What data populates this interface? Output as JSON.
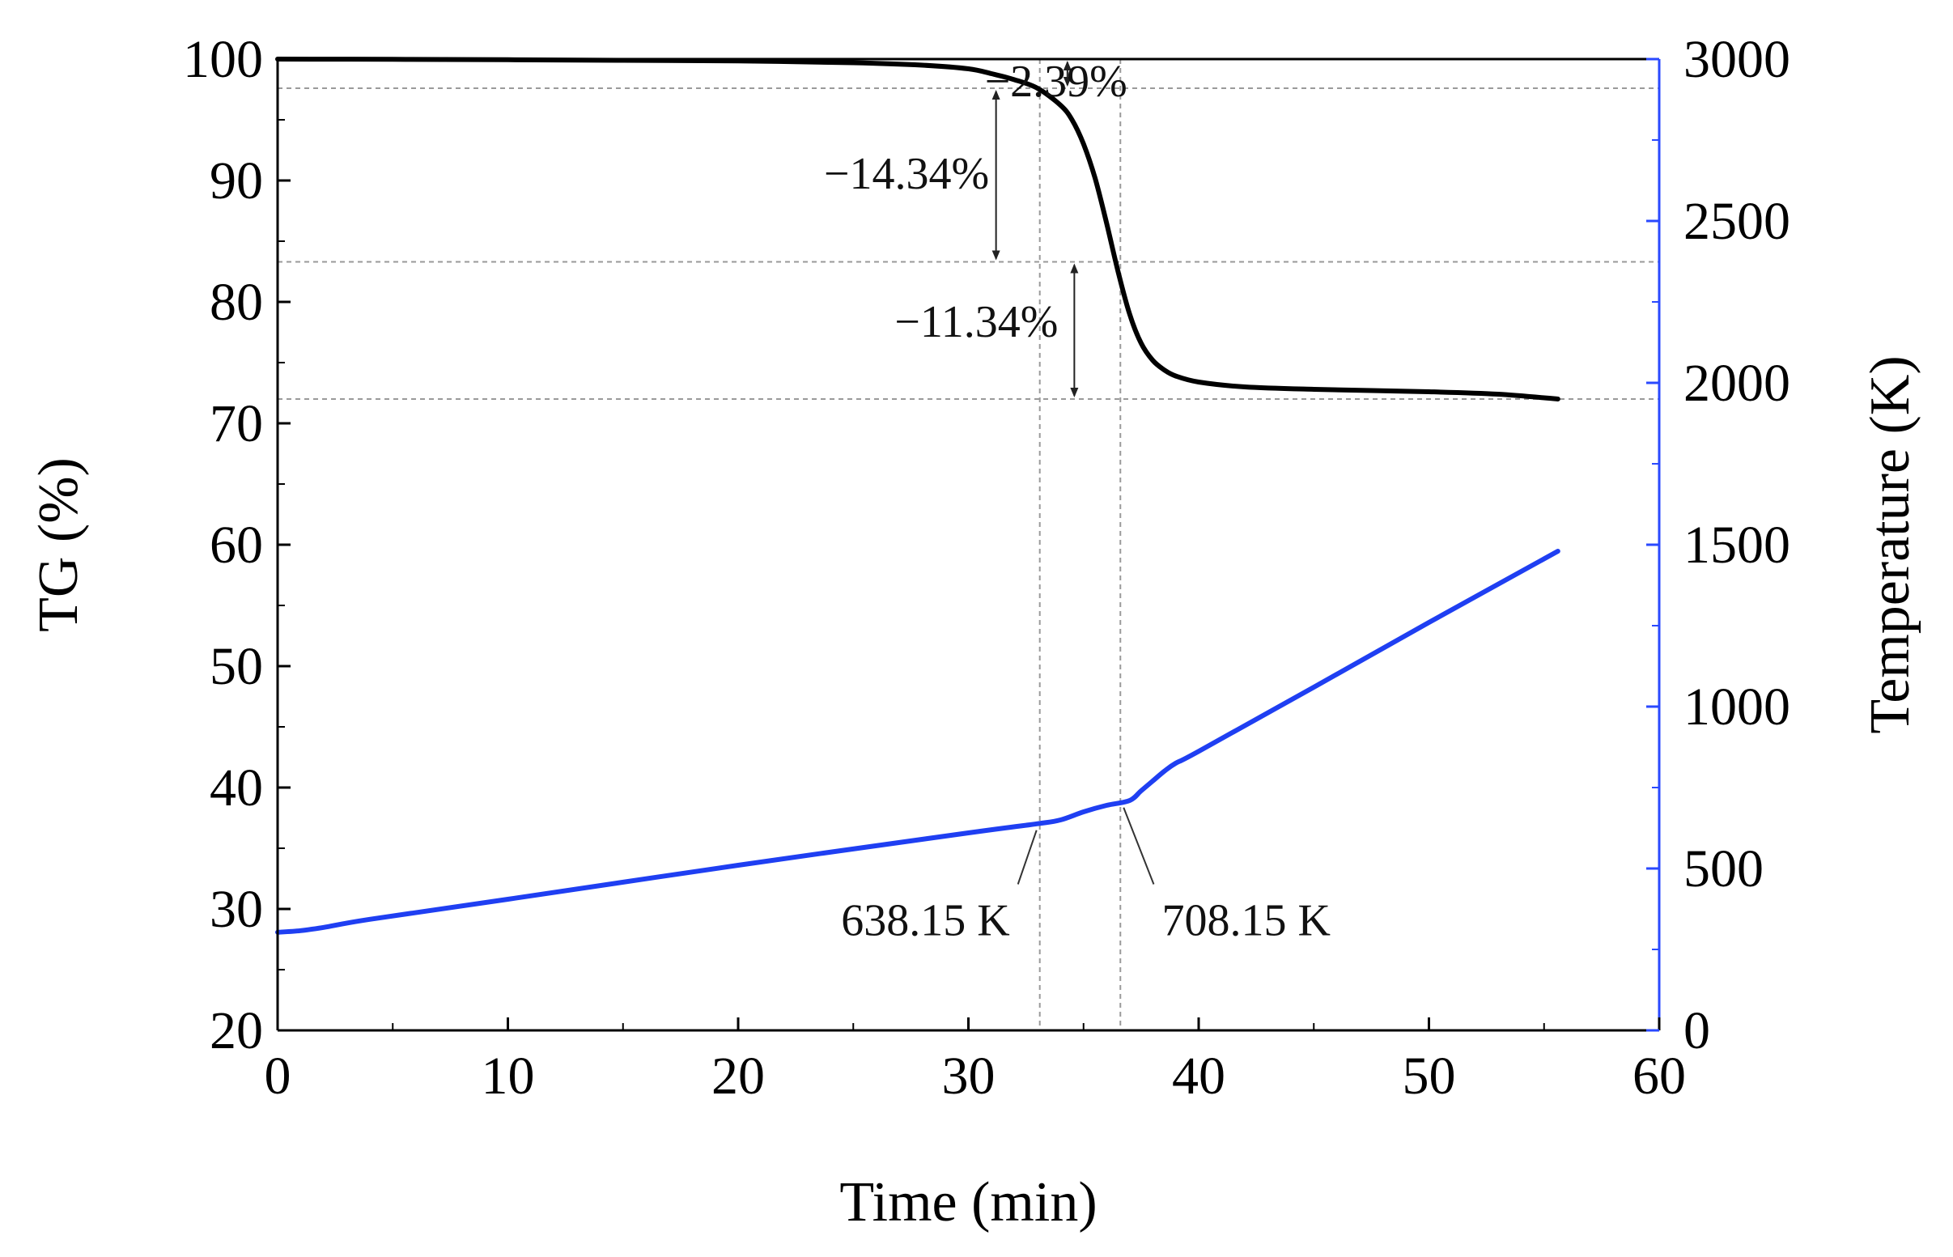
{
  "chart_data": {
    "type": "line",
    "xlabel": "Time (min)",
    "ylabel_left": "TG (%)",
    "ylabel_right": "Temperature (K)",
    "xlim": [
      0,
      60
    ],
    "ylim_left": [
      20,
      100
    ],
    "ylim_right": [
      0,
      3000
    ],
    "x_ticks": [
      "0",
      "10",
      "20",
      "30",
      "40",
      "50",
      "60"
    ],
    "y_left_ticks": [
      "20",
      "30",
      "40",
      "50",
      "60",
      "70",
      "80",
      "90",
      "100"
    ],
    "y_right_ticks": [
      "0",
      "500",
      "1000",
      "1500",
      "2000",
      "2500",
      "3000"
    ],
    "colors": {
      "tg": "#000000",
      "temperature": "#1f3ff2",
      "right_axis": "#2a49ff",
      "guide": "#9a9a9a"
    },
    "series": [
      {
        "name": "TG",
        "axis": "left",
        "x": [
          0,
          5,
          10,
          15,
          20,
          25,
          28,
          30,
          31,
          32,
          33,
          34,
          34.5,
          35,
          35.5,
          36,
          36.5,
          37,
          37.5,
          38,
          38.5,
          39,
          40,
          42,
          45,
          50,
          53,
          55.6
        ],
        "y": [
          100,
          99.98,
          99.95,
          99.9,
          99.85,
          99.7,
          99.5,
          99.2,
          98.8,
          98.3,
          97.6,
          96.2,
          95.0,
          93.0,
          90.2,
          86.5,
          82.5,
          79.0,
          76.6,
          75.2,
          74.4,
          73.9,
          73.4,
          73.0,
          72.8,
          72.6,
          72.4,
          72.0
        ]
      },
      {
        "name": "Temperature",
        "axis": "right",
        "x": [
          0,
          1,
          2,
          4,
          10,
          20,
          30,
          33,
          34,
          35,
          36,
          37,
          37.5,
          38,
          38.5,
          39,
          40,
          45,
          50,
          55.6
        ],
        "y": [
          303,
          308,
          318,
          343,
          405,
          510,
          610,
          638.15,
          650,
          675,
          695,
          710,
          740,
          770,
          800,
          825,
          862,
          1060,
          1260,
          1480
        ]
      }
    ],
    "vertical_guides_x": [
      33.1,
      36.6
    ],
    "horizontal_guides_tg": [
      100,
      97.6,
      83.3,
      72.0
    ],
    "step_arrows": [
      {
        "x": 34.3,
        "y_from": 100,
        "y_to": 97.6
      },
      {
        "x": 31.2,
        "y_from": 97.6,
        "y_to": 83.3
      },
      {
        "x": 34.6,
        "y_from": 83.3,
        "y_to": 72.0
      }
    ],
    "annotations": [
      {
        "text": "−2.39%",
        "x": 36.9,
        "y": 97.8
      },
      {
        "text": "−14.34%",
        "x": 30.9,
        "y": 90.2
      },
      {
        "text": "−11.34%",
        "x": 33.9,
        "y": 78.0
      }
    ],
    "temperature_labels": [
      {
        "text": "638.15 K",
        "point_x": 33.1,
        "point_t": 638.15,
        "label_x": 31.8,
        "label_y": 28.7
      },
      {
        "text": "708.15 K",
        "point_x": 36.6,
        "point_t": 708.15,
        "label_x": 38.4,
        "label_y": 28.7
      }
    ]
  }
}
